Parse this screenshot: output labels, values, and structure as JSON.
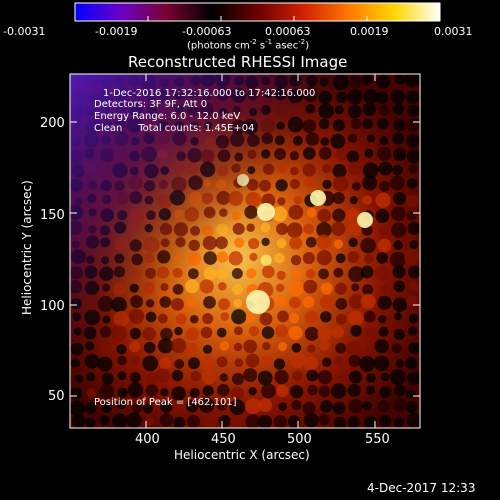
{
  "colorbar": {
    "ticks": [
      "-0.0031",
      "-0.0019",
      "-0.00063",
      "0.00063",
      "0.0019",
      "0.0031"
    ],
    "units_main": "(photons cm",
    "units_sup1": "-2",
    "units_mid": " s",
    "units_sup2": "-1",
    "units_end": " asec",
    "units_sup3": "-2",
    "units_close": ")",
    "colors": [
      "#0000ff",
      "#6a00c8",
      "#7a0030",
      "#000000",
      "#6a0000",
      "#d02000",
      "#ff7800",
      "#ffd800",
      "#ffffff"
    ]
  },
  "image": {
    "title": "Reconstructed RHESSI Image",
    "info_line1": "1-Dec-2016 17:32:16.000 to 17:42:16.000",
    "info_line2": "Detectors: 3F 9F, Att 0",
    "info_line3": "Energy Range: 6.0 - 12.0 keV",
    "info_line4": "Clean     Total counts: 1.45E+04",
    "peak_text": "Position of Peak = [462,101]"
  },
  "axes": {
    "xlabel": "Heliocentric X (arcsec)",
    "ylabel": "Heliocentric Y (arcsec)",
    "xticks": [
      "400",
      "450",
      "500",
      "550"
    ],
    "yticks": [
      "50",
      "100",
      "150",
      "200"
    ]
  },
  "footer": {
    "timestamp": "4-Dec-2017 12:33"
  }
}
